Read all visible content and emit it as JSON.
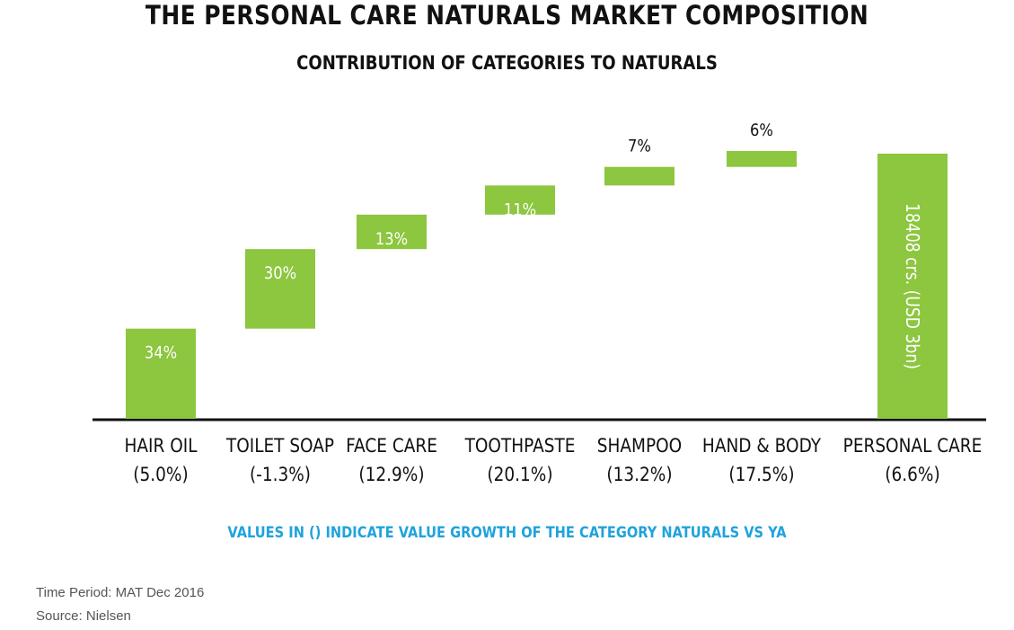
{
  "title": "THE PERSONAL CARE NATURALS MARKET COMPOSITION",
  "subtitle": "CONTRIBUTION OF CATEGORIES TO NATURALS",
  "note": "VALUES IN () INDICATE VALUE GROWTH OF THE CATEGORY NATURALS VS YA",
  "footer": {
    "period": "Time Period: MAT Dec 2016",
    "source": "Source: Nielsen"
  },
  "colors": {
    "bar": "#8dc63f",
    "note": "#1fa3dc",
    "axis": "#111111"
  },
  "chart_data": {
    "type": "bar",
    "subtype": "waterfall",
    "categories": [
      "HAIR OIL",
      "TOILET SOAP",
      "FACE CARE",
      "TOOTHPASTE",
      "SHAMPOO",
      "HAND & BODY",
      "PERSONAL CARE"
    ],
    "growth_labels": [
      "(5.0%)",
      "(-1.3%)",
      "(12.9%)",
      "(20.1%)",
      "(13.2%)",
      "(17.5%)",
      "(6.6%)"
    ],
    "values": [
      34,
      30,
      13,
      11,
      7,
      6,
      100
    ],
    "value_labels": [
      "34%",
      "30%",
      "13%",
      "11%",
      "7%",
      "6%",
      "18408 crs. (USD 3bn)"
    ],
    "ylim": [
      0,
      101
    ],
    "grid": false
  }
}
